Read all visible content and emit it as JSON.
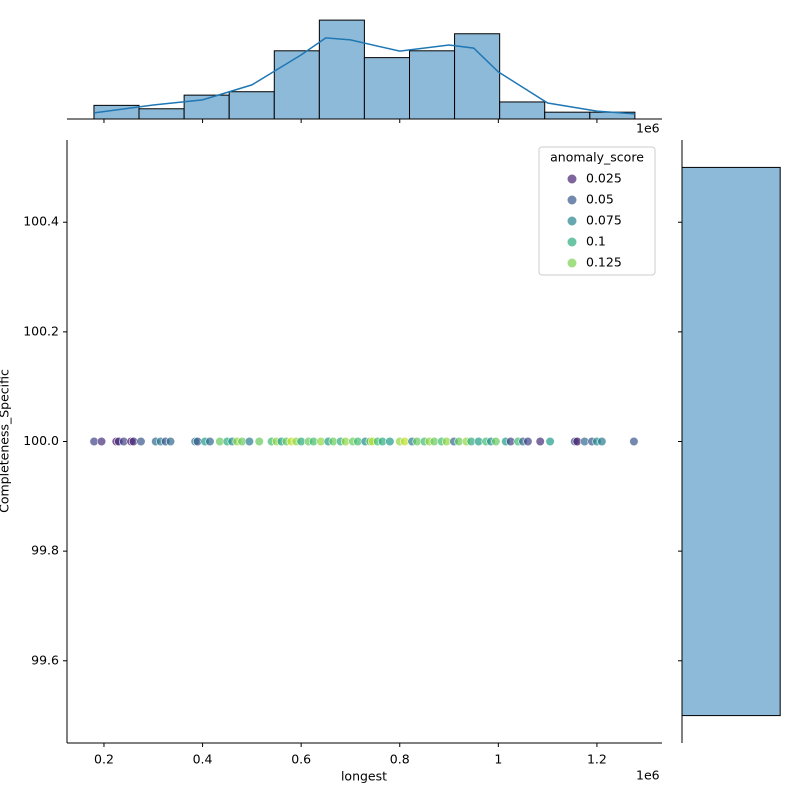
{
  "chart_data": [
    {
      "type": "scatter",
      "xlabel": "longest",
      "ylabel": "Completeness_Specific",
      "x_offset_label": "1e6",
      "xlim": [
        0.125,
        1.332
      ],
      "ylim": [
        99.45,
        100.55
      ],
      "xticks": [
        0.2,
        0.4,
        0.6,
        0.8,
        1.0,
        1.2
      ],
      "yticks": [
        99.6,
        99.8,
        {
          "value": 100,
          "label": "100.0"
        },
        100.2,
        100.4
      ],
      "x": [
        0.18,
        0.195,
        0.225,
        0.23,
        0.24,
        0.255,
        0.26,
        0.275,
        0.305,
        0.315,
        0.325,
        0.335,
        0.385,
        0.39,
        0.405,
        0.415,
        0.435,
        0.45,
        0.46,
        0.47,
        0.48,
        0.495,
        0.515,
        0.54,
        0.55,
        0.56,
        0.57,
        0.58,
        0.59,
        0.6,
        0.615,
        0.625,
        0.64,
        0.655,
        0.665,
        0.68,
        0.69,
        0.705,
        0.715,
        0.73,
        0.74,
        0.745,
        0.755,
        0.765,
        0.78,
        0.8,
        0.81,
        0.825,
        0.835,
        0.85,
        0.86,
        0.87,
        0.885,
        0.895,
        0.91,
        0.92,
        0.935,
        0.945,
        0.96,
        0.975,
        0.985,
        0.995,
        1.015,
        1.025,
        1.04,
        1.05,
        1.06,
        1.085,
        1.105,
        1.155,
        1.16,
        1.175,
        1.19,
        1.2,
        1.21,
        1.275
      ],
      "y": [
        100,
        100,
        100,
        100,
        100,
        100,
        100,
        100,
        100,
        100,
        100,
        100,
        100,
        100,
        100,
        100,
        100,
        100,
        100,
        100,
        100,
        100,
        100,
        100,
        100,
        100,
        100,
        100,
        100,
        100,
        100,
        100,
        100,
        100,
        100,
        100,
        100,
        100,
        100,
        100,
        100,
        100,
        100,
        100,
        100,
        100,
        100,
        100,
        100,
        100,
        100,
        100,
        100,
        100,
        100,
        100,
        100,
        100,
        100,
        100,
        100,
        100,
        100,
        100,
        100,
        100,
        100,
        100,
        100,
        100,
        100,
        100,
        100,
        100,
        100,
        100
      ],
      "hue": [
        0.04,
        0.03,
        0.02,
        0.03,
        0.04,
        0.02,
        0.03,
        0.05,
        0.06,
        0.07,
        0.05,
        0.06,
        0.07,
        0.05,
        0.09,
        0.06,
        0.12,
        0.1,
        0.08,
        0.13,
        0.12,
        0.07,
        0.12,
        0.11,
        0.13,
        0.09,
        0.12,
        0.14,
        0.13,
        0.1,
        0.12,
        0.11,
        0.13,
        0.09,
        0.12,
        0.1,
        0.13,
        0.12,
        0.11,
        0.08,
        0.12,
        0.14,
        0.11,
        0.1,
        0.09,
        0.13,
        0.14,
        0.07,
        0.12,
        0.11,
        0.13,
        0.12,
        0.11,
        0.13,
        0.06,
        0.12,
        0.13,
        0.1,
        0.09,
        0.11,
        0.08,
        0.12,
        0.09,
        0.04,
        0.11,
        0.06,
        0.04,
        0.03,
        0.09,
        0.05,
        0.02,
        0.06,
        0.05,
        0.08,
        0.07,
        0.05
      ],
      "hue_norm": [
        0.011,
        0.154
      ],
      "palette": [
        "#440154",
        "#482878",
        "#3e4989",
        "#31688e",
        "#26828e",
        "#1f9e89",
        "#35b779",
        "#6ece58",
        "#b5de2b",
        "#fde725"
      ],
      "legend": {
        "title": "anomaly_score",
        "entries": [
          0.025,
          0.05,
          0.075,
          0.1,
          0.125
        ]
      }
    },
    {
      "type": "histogram",
      "orientation": "vertical",
      "color": "#8ebad9",
      "bins": [
        0.1797,
        0.2711,
        0.3626,
        0.454,
        0.5455,
        0.6369,
        0.7283,
        0.8198,
        0.9112,
        1.0027,
        1.0941,
        1.1856,
        1.277
      ],
      "counts": [
        4,
        3,
        7,
        8,
        20,
        29,
        18,
        20,
        25,
        5,
        2,
        2
      ],
      "ylim": [
        0,
        30.5
      ],
      "kde": {
        "color": "#1f77b4",
        "x": [
          0.18,
          0.3,
          0.4,
          0.5,
          0.6,
          0.65,
          0.7,
          0.8,
          0.9,
          0.95,
          1.0,
          1.1,
          1.2,
          1.277
        ],
        "y": [
          1.8,
          4.1,
          5.6,
          10,
          18.8,
          23.8,
          23.2,
          19.9,
          21.7,
          20.8,
          13.8,
          4.7,
          2.3,
          1.5
        ]
      }
    },
    {
      "type": "histogram",
      "orientation": "horizontal",
      "color": "#8ebad9",
      "bins": [
        99.5,
        100.5
      ],
      "counts": [
        143
      ],
      "xlim": [
        0,
        150
      ]
    }
  ]
}
